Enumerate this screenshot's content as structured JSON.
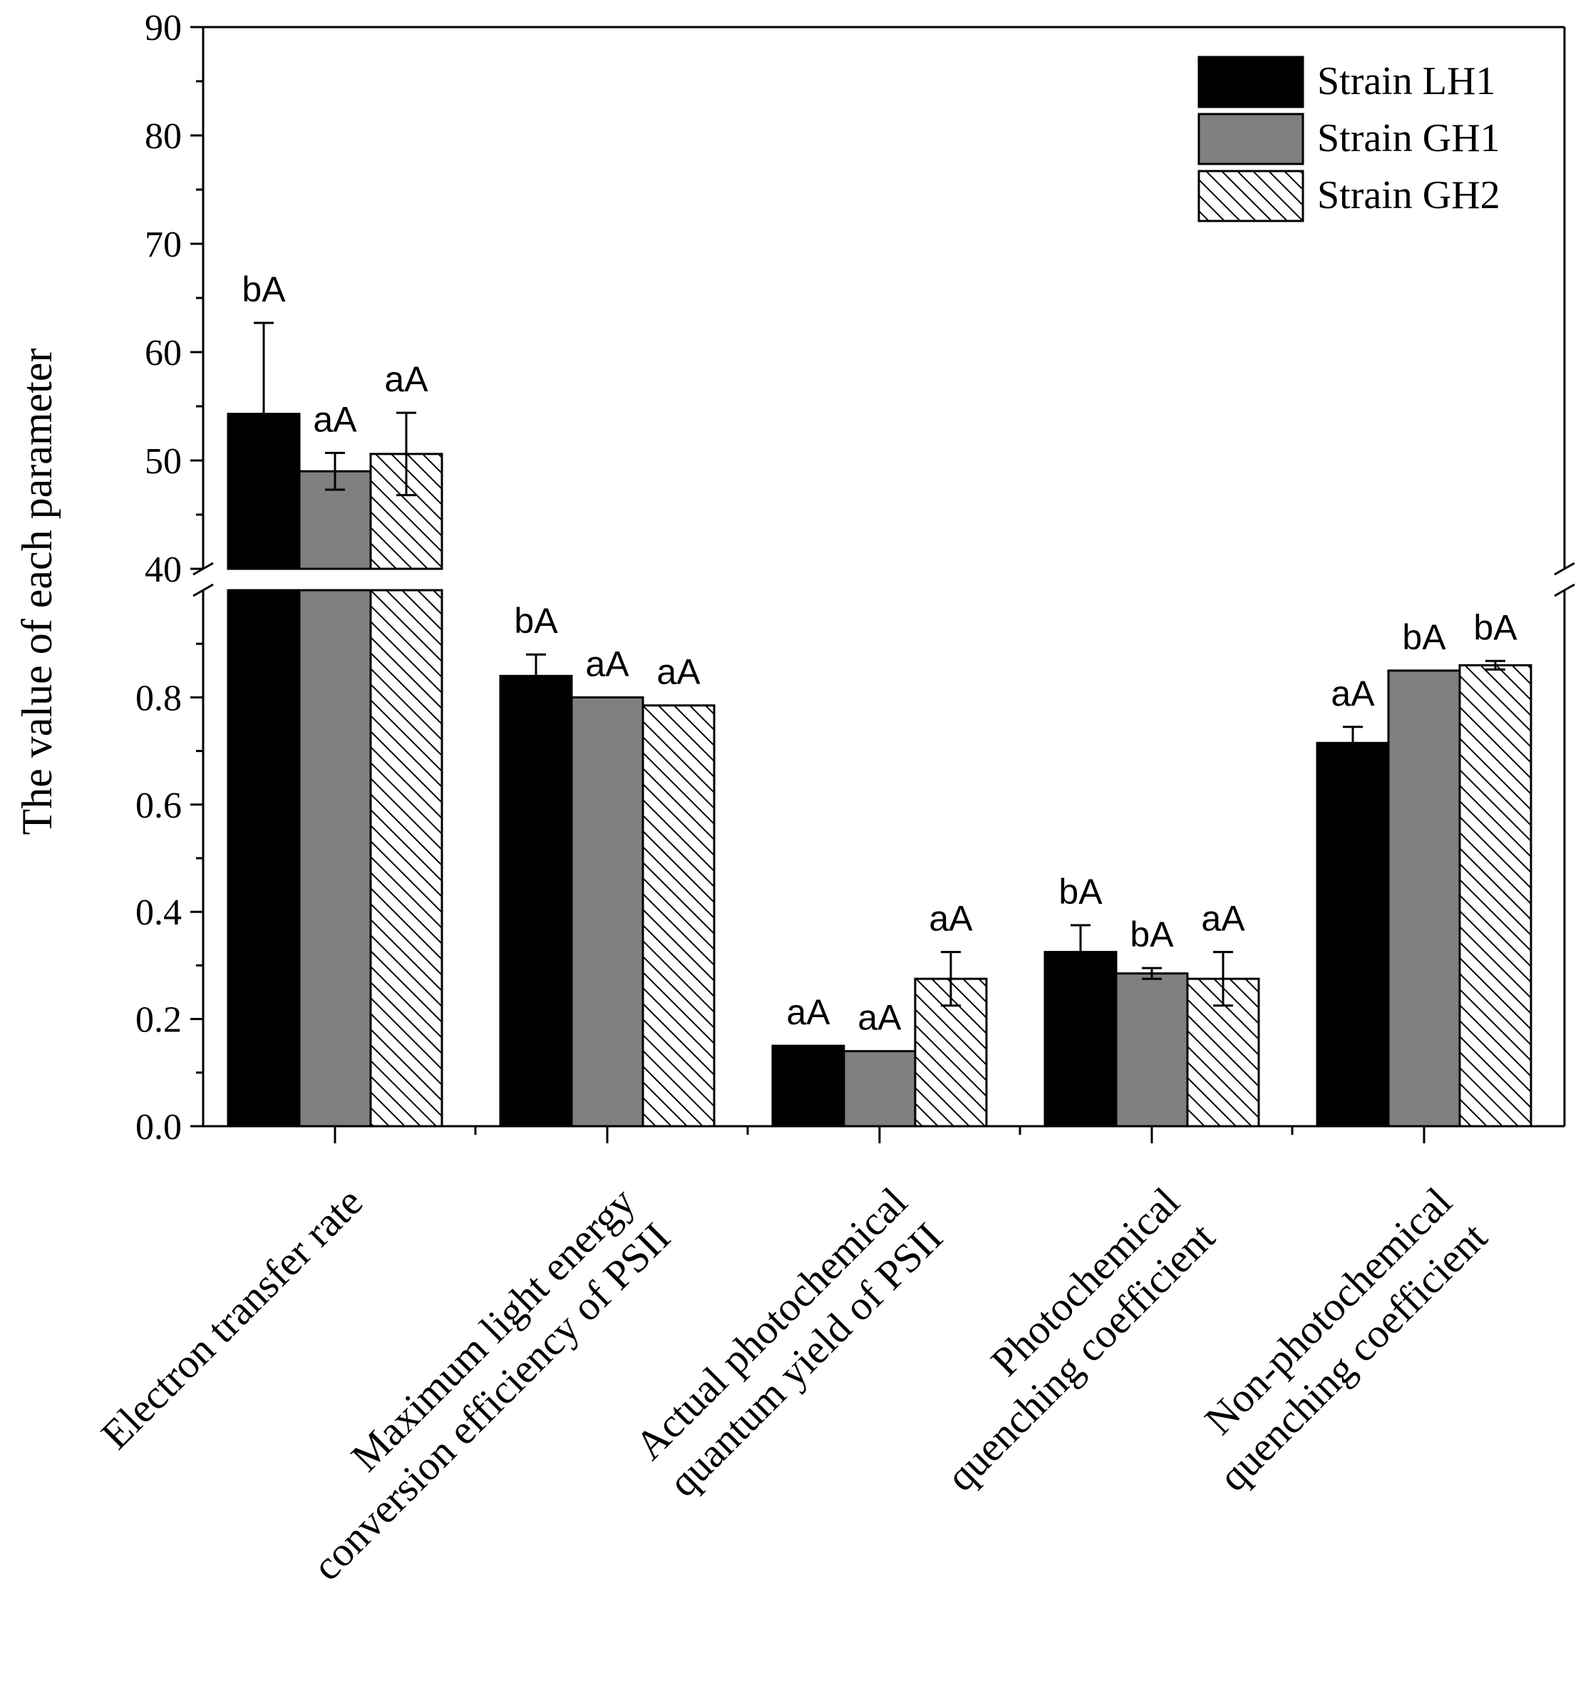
{
  "chart_data": {
    "type": "bar",
    "ylabel": "The value of each parameter",
    "xlabel": "",
    "categories": [
      [
        "Electron transfer rate"
      ],
      [
        "Maximum light energy",
        "conversion efficiency of PSII"
      ],
      [
        "Actual photochemical",
        "quantum yield of PSII"
      ],
      [
        "Photochemical",
        "quenching coefficient"
      ],
      [
        "Non-photochemical",
        "quenching coefficient"
      ]
    ],
    "y_axis_break": {
      "lower_range": [
        0.0,
        1.0
      ],
      "upper_range": [
        40,
        90
      ],
      "lower_ticks": [
        "0.0",
        "0.2",
        "0.4",
        "0.6",
        "0.8"
      ],
      "upper_ticks": [
        "40",
        "50",
        "60",
        "70",
        "80",
        "90"
      ]
    },
    "series": [
      {
        "name": "Strain LH1",
        "fill": "#000000",
        "pattern": "solid",
        "values": [
          54.3,
          0.84,
          0.15,
          0.325,
          0.715
        ],
        "errors": [
          8.4,
          0.04,
          0.0,
          0.05,
          0.03
        ],
        "labels": [
          "bA",
          "bA",
          "aA",
          "bA",
          "aA"
        ]
      },
      {
        "name": "Strain GH1",
        "fill": "#808080",
        "pattern": "solid",
        "values": [
          49.0,
          0.8,
          0.14,
          0.285,
          0.85
        ],
        "errors": [
          1.7,
          0.0,
          0.0,
          0.01,
          0.0
        ],
        "labels": [
          "aA",
          "aA",
          "aA",
          "bA",
          "bA"
        ]
      },
      {
        "name": "Strain GH2",
        "fill": "#ffffff",
        "pattern": "hatch",
        "values": [
          50.6,
          0.785,
          0.275,
          0.275,
          0.86
        ],
        "errors": [
          3.8,
          0.0,
          0.05,
          0.05,
          0.008
        ],
        "labels": [
          "aA",
          "aA",
          "aA",
          "aA",
          "bA"
        ]
      }
    ],
    "legend": [
      "Strain LH1",
      "Strain GH1",
      "Strain GH2"
    ],
    "legend_position": "top-right",
    "grid": false
  }
}
